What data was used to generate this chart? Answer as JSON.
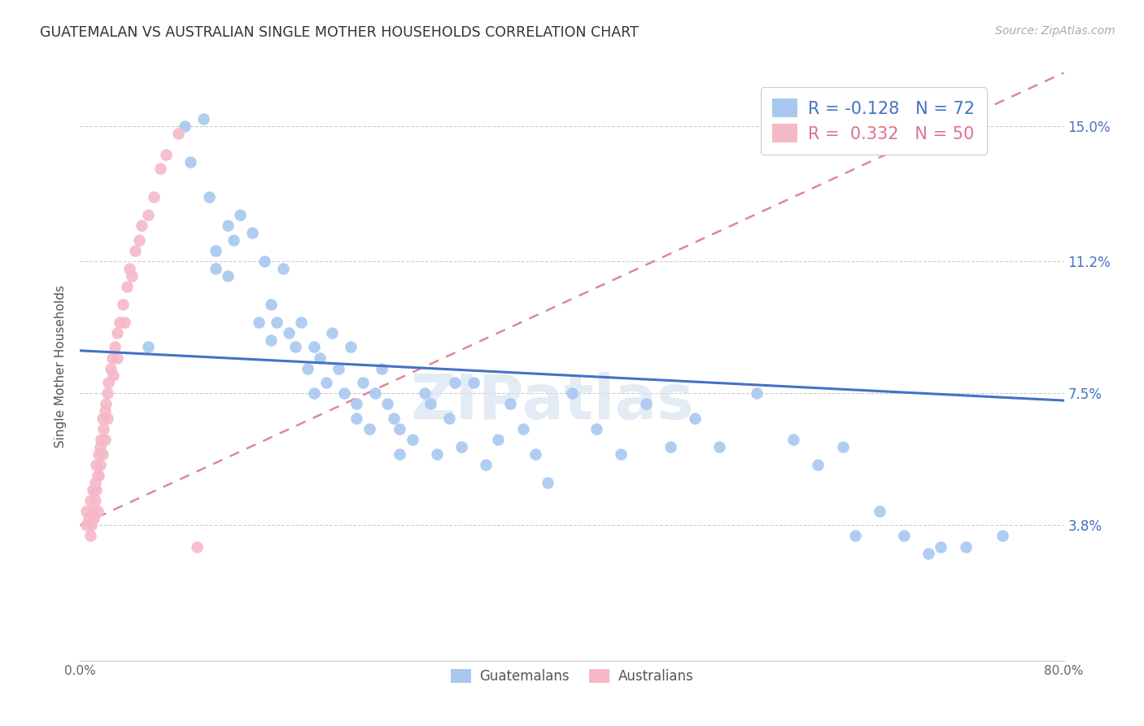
{
  "title": "GUATEMALAN VS AUSTRALIAN SINGLE MOTHER HOUSEHOLDS CORRELATION CHART",
  "source": "Source: ZipAtlas.com",
  "ylabel": "Single Mother Households",
  "xlim": [
    0.0,
    0.8
  ],
  "ylim": [
    0.0,
    0.165
  ],
  "yticks": [
    0.038,
    0.075,
    0.112,
    0.15
  ],
  "ytick_labels": [
    "3.8%",
    "7.5%",
    "11.2%",
    "15.0%"
  ],
  "xticks": [
    0.0,
    0.16,
    0.32,
    0.48,
    0.64,
    0.8
  ],
  "xtick_labels": [
    "0.0%",
    "",
    "",
    "",
    "",
    "80.0%"
  ],
  "blue_color": "#a8c8f0",
  "pink_color": "#f5b8c8",
  "trend_blue_color": "#4472c4",
  "trend_pink_color": "#e08898",
  "R_blue": -0.128,
  "N_blue": 72,
  "R_pink": 0.332,
  "N_pink": 50,
  "legend_label_blue": "Guatemalans",
  "legend_label_pink": "Australians",
  "watermark": "ZIPatlas",
  "blue_scatter_x": [
    0.055,
    0.085,
    0.09,
    0.1,
    0.105,
    0.11,
    0.11,
    0.12,
    0.12,
    0.125,
    0.13,
    0.14,
    0.145,
    0.15,
    0.155,
    0.155,
    0.16,
    0.165,
    0.17,
    0.175,
    0.18,
    0.185,
    0.19,
    0.19,
    0.195,
    0.2,
    0.205,
    0.21,
    0.215,
    0.22,
    0.225,
    0.225,
    0.23,
    0.235,
    0.24,
    0.245,
    0.25,
    0.255,
    0.26,
    0.26,
    0.27,
    0.28,
    0.285,
    0.29,
    0.3,
    0.305,
    0.31,
    0.32,
    0.33,
    0.34,
    0.35,
    0.36,
    0.37,
    0.38,
    0.4,
    0.42,
    0.44,
    0.46,
    0.48,
    0.5,
    0.52,
    0.55,
    0.58,
    0.6,
    0.62,
    0.63,
    0.65,
    0.67,
    0.69,
    0.7,
    0.72,
    0.75
  ],
  "blue_scatter_y": [
    0.088,
    0.15,
    0.14,
    0.152,
    0.13,
    0.115,
    0.11,
    0.122,
    0.108,
    0.118,
    0.125,
    0.12,
    0.095,
    0.112,
    0.1,
    0.09,
    0.095,
    0.11,
    0.092,
    0.088,
    0.095,
    0.082,
    0.088,
    0.075,
    0.085,
    0.078,
    0.092,
    0.082,
    0.075,
    0.088,
    0.072,
    0.068,
    0.078,
    0.065,
    0.075,
    0.082,
    0.072,
    0.068,
    0.058,
    0.065,
    0.062,
    0.075,
    0.072,
    0.058,
    0.068,
    0.078,
    0.06,
    0.078,
    0.055,
    0.062,
    0.072,
    0.065,
    0.058,
    0.05,
    0.075,
    0.065,
    0.058,
    0.072,
    0.06,
    0.068,
    0.06,
    0.075,
    0.062,
    0.055,
    0.06,
    0.035,
    0.042,
    0.035,
    0.03,
    0.032,
    0.032,
    0.035
  ],
  "pink_scatter_x": [
    0.005,
    0.005,
    0.007,
    0.008,
    0.008,
    0.009,
    0.01,
    0.01,
    0.011,
    0.012,
    0.012,
    0.013,
    0.013,
    0.014,
    0.014,
    0.015,
    0.015,
    0.016,
    0.016,
    0.017,
    0.018,
    0.018,
    0.019,
    0.02,
    0.02,
    0.021,
    0.022,
    0.022,
    0.023,
    0.025,
    0.026,
    0.027,
    0.028,
    0.03,
    0.03,
    0.032,
    0.035,
    0.036,
    0.038,
    0.04,
    0.042,
    0.045,
    0.048,
    0.05,
    0.055,
    0.06,
    0.065,
    0.07,
    0.08,
    0.095
  ],
  "pink_scatter_y": [
    0.042,
    0.038,
    0.04,
    0.045,
    0.035,
    0.038,
    0.042,
    0.048,
    0.04,
    0.05,
    0.045,
    0.055,
    0.048,
    0.052,
    0.042,
    0.058,
    0.052,
    0.06,
    0.055,
    0.062,
    0.068,
    0.058,
    0.065,
    0.07,
    0.062,
    0.072,
    0.075,
    0.068,
    0.078,
    0.082,
    0.085,
    0.08,
    0.088,
    0.092,
    0.085,
    0.095,
    0.1,
    0.095,
    0.105,
    0.11,
    0.108,
    0.115,
    0.118,
    0.122,
    0.125,
    0.13,
    0.138,
    0.142,
    0.148,
    0.032
  ],
  "blue_trend_x0": 0.0,
  "blue_trend_y0": 0.087,
  "blue_trend_x1": 0.8,
  "blue_trend_y1": 0.073,
  "pink_trend_x0": 0.0,
  "pink_trend_y0": 0.038,
  "pink_trend_x1": 0.8,
  "pink_trend_y1": 0.165
}
